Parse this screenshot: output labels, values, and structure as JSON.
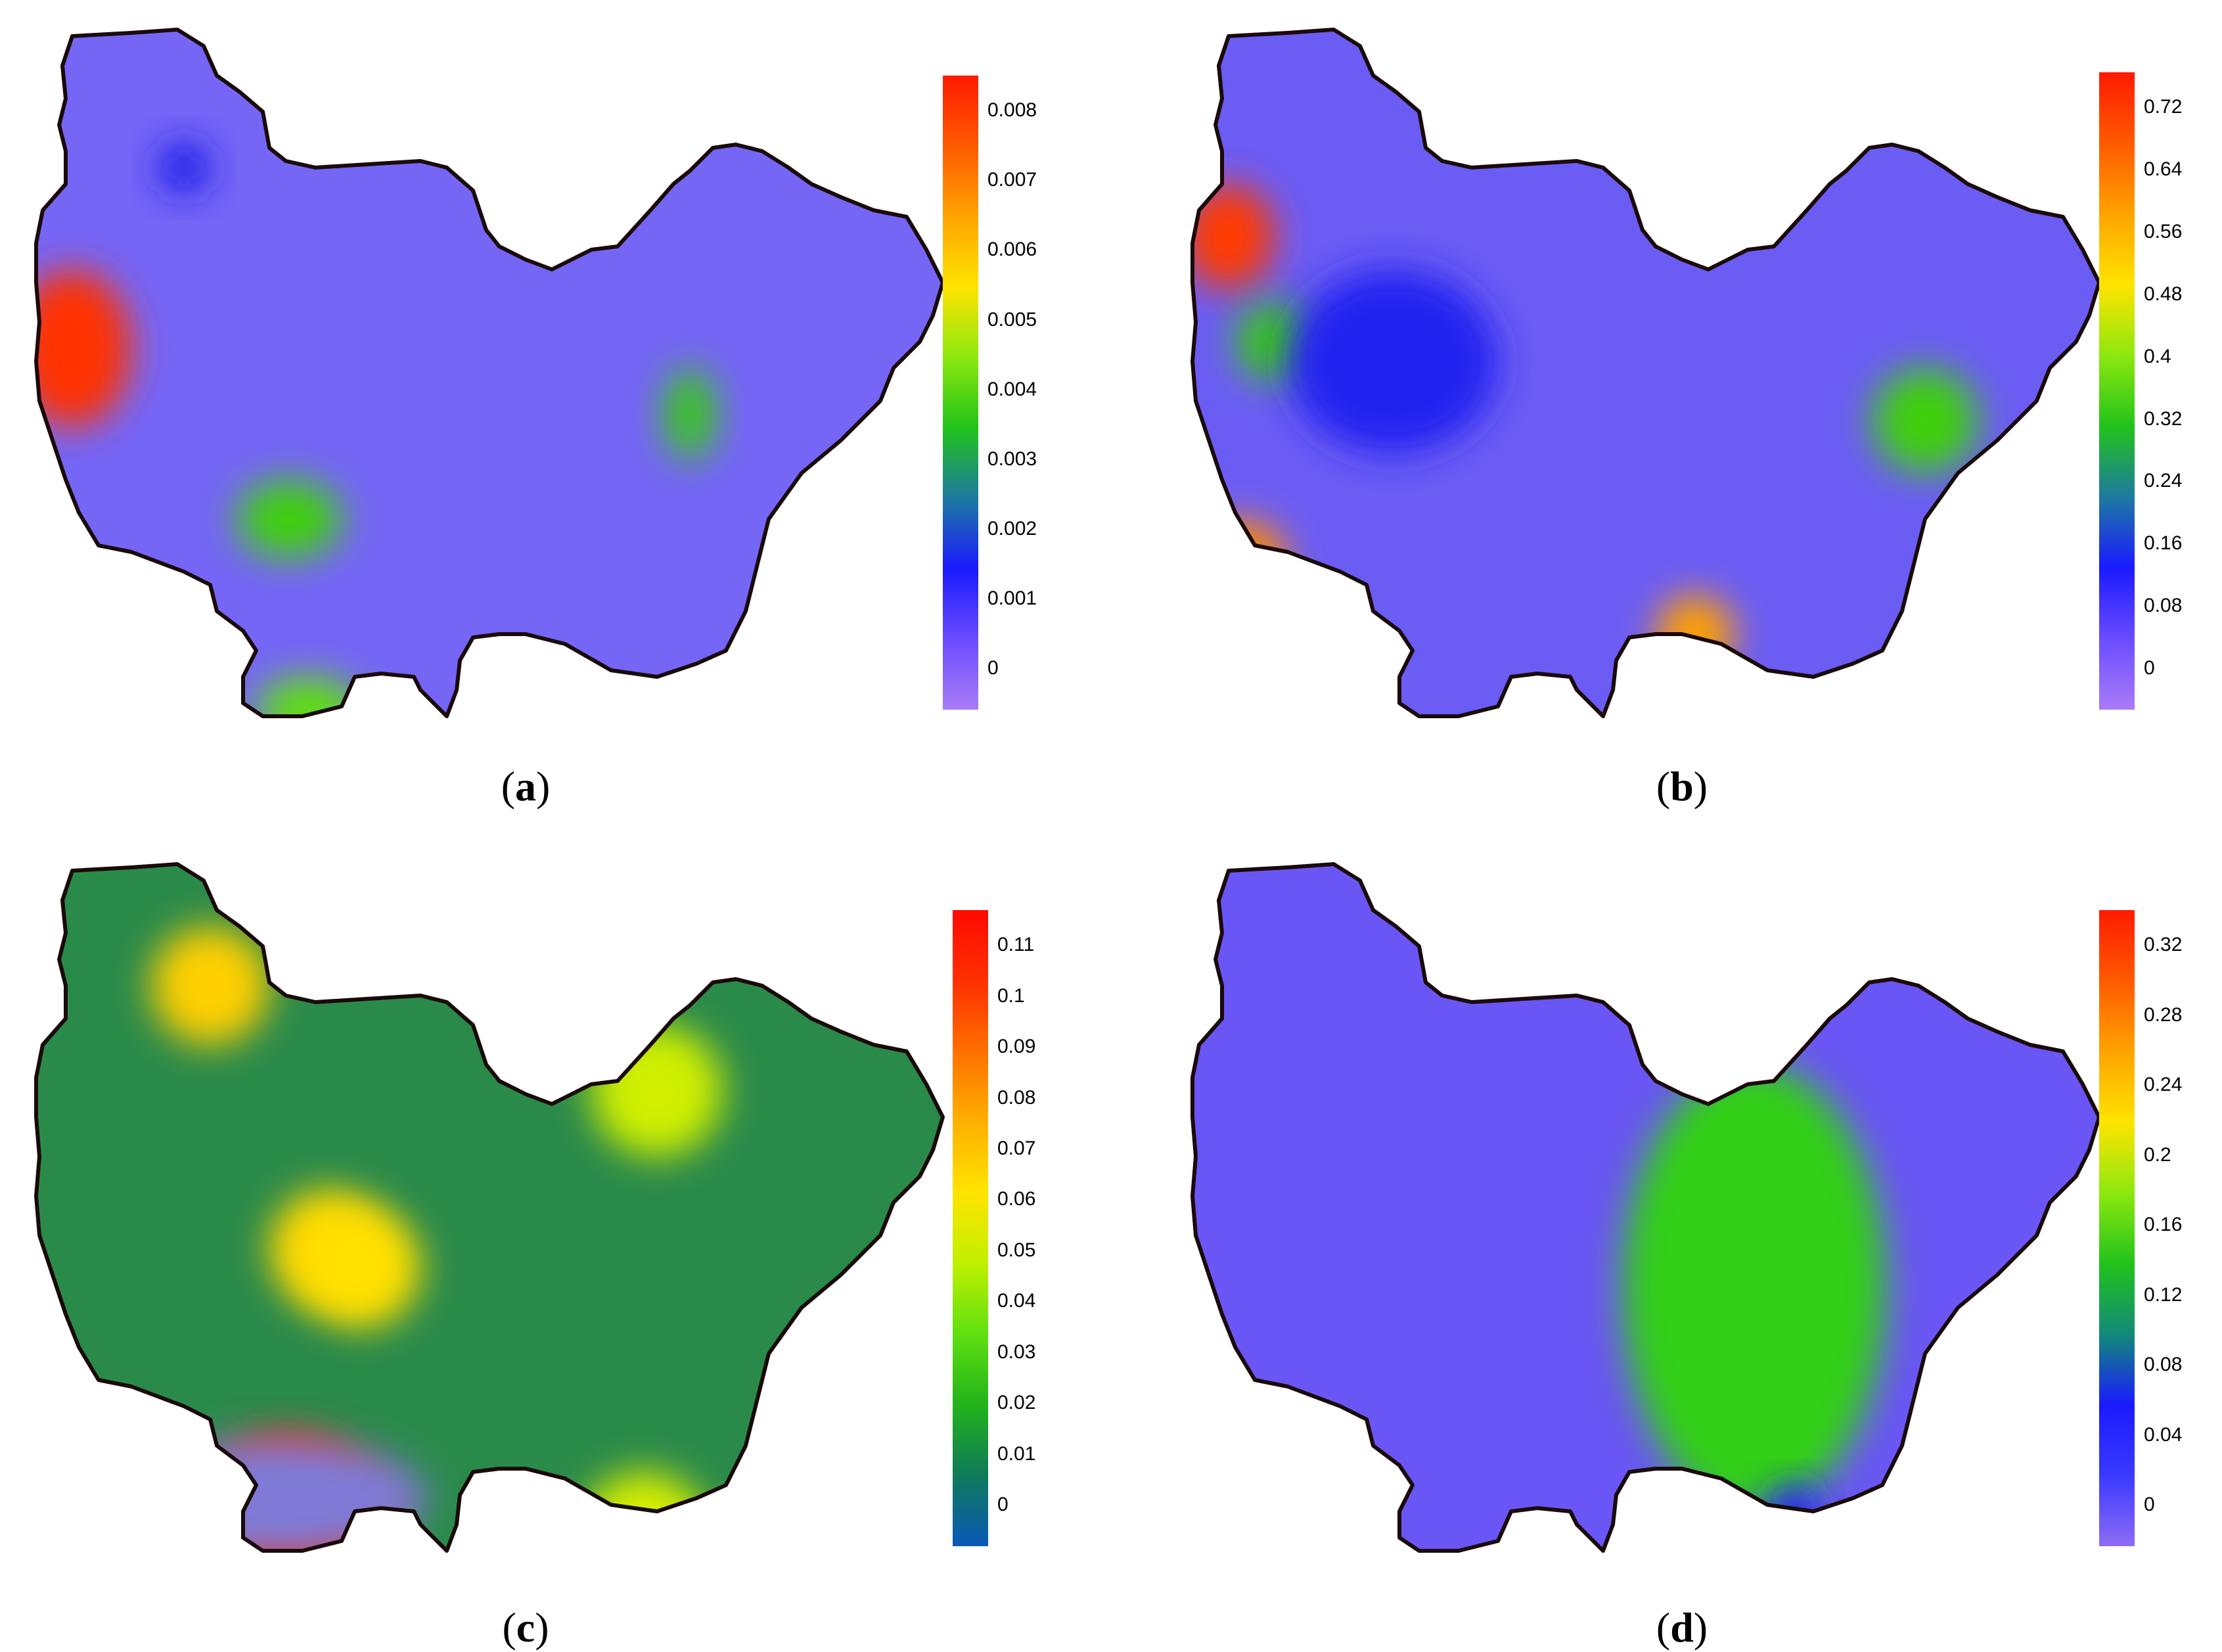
{
  "panels": [
    {
      "id": "a",
      "caption_open": "(",
      "caption_letter": "a",
      "caption_close": ")",
      "colorbar": {
        "colors": [
          "#a97cf7",
          "#6a4cff",
          "#1a1aff",
          "#1d7aa0",
          "#22c31a",
          "#8de80f",
          "#ffe400",
          "#ffa300",
          "#ff5a00",
          "#ff1a00"
        ],
        "ticks": [
          "0.008",
          "0.007",
          "0.006",
          "0.005",
          "0.004",
          "0.003",
          "0.002",
          "0.001",
          "0"
        ]
      },
      "background_color": "#7566f6",
      "hotspots": [
        "#ff3000",
        "#40d010",
        "#39c815",
        "#60e010",
        "#1e1ee8"
      ]
    },
    {
      "id": "b",
      "caption_open": "(",
      "caption_letter": "b",
      "caption_close": ")",
      "colorbar": {
        "colors": [
          "#a97cf7",
          "#6a4cff",
          "#1a1aff",
          "#1d7aa0",
          "#22c31a",
          "#8de80f",
          "#ffe400",
          "#ffa300",
          "#ff5a00",
          "#ff1a00"
        ],
        "ticks": [
          "0.72",
          "0.64",
          "0.56",
          "0.48",
          "0.4",
          "0.32",
          "0.24",
          "0.16",
          "0.08",
          "0"
        ]
      },
      "background_color": "#6b5cf4",
      "hotspots": [
        "#ff3a00",
        "#ff8a00",
        "#ffa000",
        "#40d010",
        "#39c815",
        "#2020f0"
      ]
    },
    {
      "id": "c",
      "caption_open": "(",
      "caption_letter": "c",
      "caption_close": ")",
      "colorbar": {
        "colors": [
          "#0a58b8",
          "#0f7a5a",
          "#22b31a",
          "#5fe010",
          "#c0f000",
          "#ffe400",
          "#ffb000",
          "#ff7000",
          "#ff3000",
          "#ff0a00"
        ],
        "ticks": [
          "0.11",
          "0.1",
          "0.09",
          "0.08",
          "0.07",
          "0.06",
          "0.05",
          "0.04",
          "0.03",
          "0.02",
          "0.01",
          "0"
        ]
      },
      "background_color": "#2a8a4a",
      "hotspots": [
        "#ff2a00",
        "#ffd000",
        "#ffd800",
        "#ffe000",
        "#d8f000",
        "#d0f000",
        "#7e7ad6"
      ]
    },
    {
      "id": "d",
      "caption_open": "(",
      "caption_letter": "d",
      "caption_close": ")",
      "colorbar": {
        "colors": [
          "#8f6cf5",
          "#3a3aff",
          "#1a1aff",
          "#118a78",
          "#22c31a",
          "#8de80f",
          "#ffe400",
          "#ffa300",
          "#ff5a00",
          "#ff1a00"
        ],
        "ticks": [
          "0.32",
          "0.28",
          "0.24",
          "0.2",
          "0.16",
          "0.12",
          "0.08",
          "0.04",
          "0"
        ]
      },
      "background_color": "#6a56f4",
      "hotspots": [
        "#ff3000",
        "#30d018",
        "#2020f0"
      ]
    }
  ]
}
